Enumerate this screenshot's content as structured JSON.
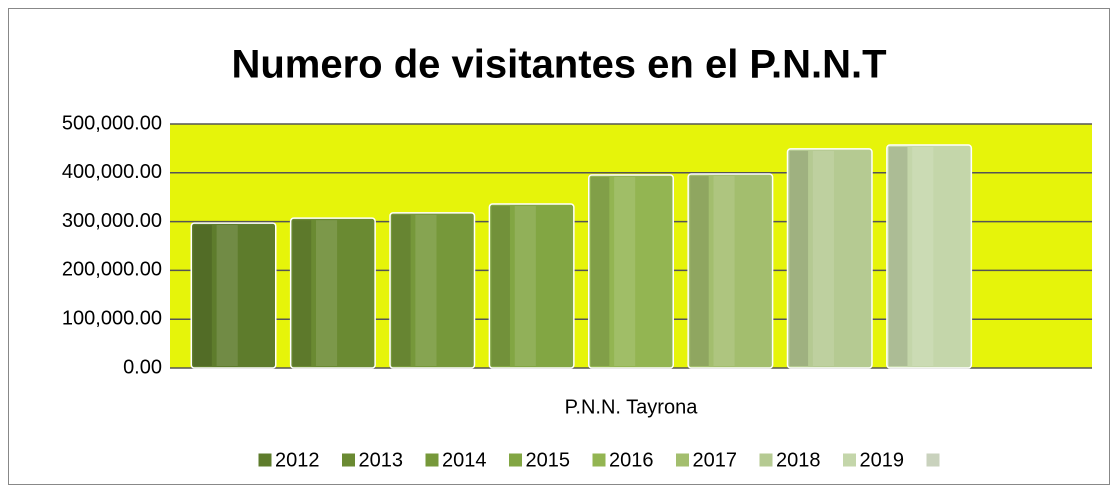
{
  "chart_data": {
    "type": "bar",
    "title": "Numero de visitantes en el P.N.N.T",
    "categories": [
      "P.N.N. Tayrona"
    ],
    "series": [
      {
        "name": "2012",
        "color": "#5e7c2c",
        "values": [
          297000
        ]
      },
      {
        "name": "2013",
        "color": "#6a8a32",
        "values": [
          307000
        ]
      },
      {
        "name": "2014",
        "color": "#76983a",
        "values": [
          318000
        ]
      },
      {
        "name": "2015",
        "color": "#82a643",
        "values": [
          336000
        ]
      },
      {
        "name": "2016",
        "color": "#93b552",
        "values": [
          395500
        ]
      },
      {
        "name": "2017",
        "color": "#a3be6e",
        "values": [
          397500
        ]
      },
      {
        "name": "2018",
        "color": "#b5ca92",
        "values": [
          449000
        ]
      },
      {
        "name": "2019",
        "color": "#c4d6aa",
        "values": [
          457000
        ]
      },
      {
        "name": null,
        "color": "#c9d2bd",
        "values": [
          null
        ]
      }
    ],
    "ylim": [
      0,
      500000
    ],
    "yticks": [
      {
        "value": 0,
        "label": "0.00"
      },
      {
        "value": 100000,
        "label": "100,000.00"
      },
      {
        "value": 200000,
        "label": "200,000.00"
      },
      {
        "value": 300000,
        "label": "300,000.00"
      },
      {
        "value": 400000,
        "label": "400,000.00"
      },
      {
        "value": 500000,
        "label": "500,000.00"
      }
    ],
    "grid": true,
    "plot_background": "#e6f40a",
    "legend": "bottom"
  }
}
